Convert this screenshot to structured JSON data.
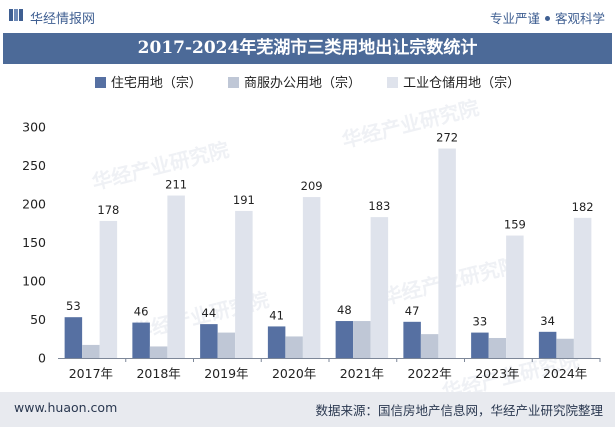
{
  "header": {
    "brand": "华经情报网",
    "slogan_left": "专业严谨",
    "slogan_right": "客观科学"
  },
  "watermark": "华经产业研究院",
  "chart_data": {
    "type": "bar",
    "title": "2017-2024年芜湖市三类用地出让宗数统计",
    "categories": [
      "2017年",
      "2018年",
      "2019年",
      "2020年",
      "2021年",
      "2022年",
      "2023年",
      "2024年"
    ],
    "series": [
      {
        "name": "住宅用地（宗）",
        "color": "#5670a2",
        "values": [
          53,
          46,
          44,
          41,
          48,
          47,
          33,
          34
        ],
        "labeled": true
      },
      {
        "name": "商服办公用地（宗）",
        "color": "#bfc7d6",
        "values": [
          17,
          15,
          33,
          28,
          48,
          31,
          26,
          25
        ],
        "labeled": false
      },
      {
        "name": "工业仓储用地（宗）",
        "color": "#dfe3ec",
        "values": [
          178,
          211,
          191,
          209,
          183,
          272,
          159,
          182
        ],
        "labeled": true
      }
    ],
    "ylim": [
      0,
      300
    ],
    "yticks": [
      0,
      50,
      100,
      150,
      200,
      250,
      300
    ],
    "grid": false,
    "legend_position": "top"
  },
  "footer": {
    "site": "www.huaon.com",
    "source": "数据来源：国信房地产信息网，华经产业研究院整理"
  }
}
